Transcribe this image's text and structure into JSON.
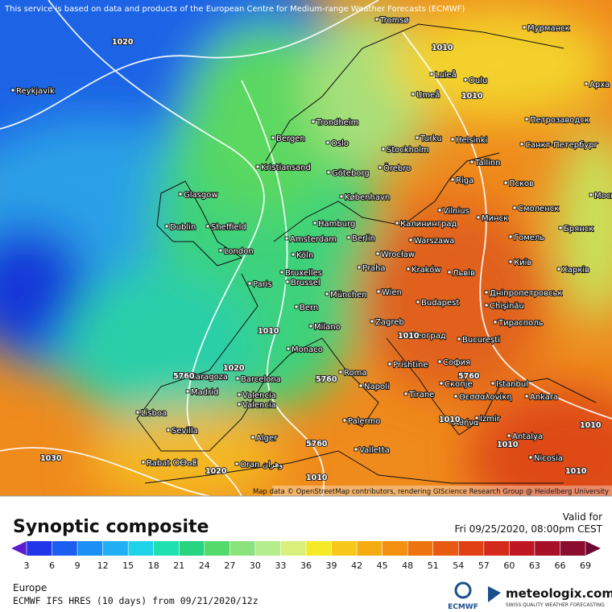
{
  "header": {
    "attribution": "This service is based on data and products of the European Centre for Medium-range Weather Forecasts (ECMWF)"
  },
  "map": {
    "cities": [
      "Reykjavík",
      "Tromsø",
      "Мурманск",
      "Luleå",
      "Oulu",
      "Арха",
      "Umeå",
      "Trondheim",
      "Петрозаводск",
      "Bergen",
      "Oslo",
      "Turku",
      "Helsinki",
      "Санкт-Петербург",
      "Stockholm",
      "Örebro",
      "Tallinn",
      "Kristiansand",
      "Göteborg",
      "Glasgow",
      "Riga",
      "Псков",
      "København",
      "Москва",
      "Dublin",
      "Sheffield",
      "Vilnius",
      "Смоленск",
      "Hamburg",
      "Калининград",
      "Минск",
      "Брянск",
      "Amsterdam",
      "Berlin",
      "Гомель",
      "Warszawa",
      "London",
      "Köln",
      "Wrocław",
      "Київ",
      "Kraków",
      "Bruxelles",
      "Praha",
      "Львів",
      "Харків",
      "Brussel",
      "Paris",
      "München",
      "Wien",
      "Дніпропетровськ",
      "Bern",
      "Budapest",
      "Chișinău",
      "Milano",
      "Zagreb",
      "Београд",
      "Тирасполь",
      "Monaco",
      "București",
      "Roma",
      "Prishtine",
      "София",
      "Zaragoza",
      "Barcelona",
      "Istanbul",
      "Madrid",
      "Napoli",
      "Скопје",
      "Tirane",
      "Θεσσαλονίκη",
      "Ankara",
      "Valencia",
      "Valencia",
      "Lisboa",
      "Palermo",
      "Αθήνα",
      "Izmir",
      "Sevilla",
      "Alger",
      "Antalya",
      "Valletta",
      "Nicosia",
      "Rabat ⵔⴱⴰⵟ",
      "Oran وهران"
    ],
    "isobar_labels": [
      "1020",
      "1010",
      "1010",
      "1010",
      "5760",
      "1020",
      "5760",
      "1010",
      "5760",
      "1010",
      "1010",
      "1010",
      "5760",
      "1030",
      "1020",
      "1010",
      "1010"
    ],
    "credit": "Map data © OpenStreetMap contributors, rendering GIScience Research Group @ Heidelberg University"
  },
  "legend": {
    "title": "Synoptic composite",
    "valid_label": "Valid for",
    "valid_time": "Fri 09/25/2020, 08:00pm CEST",
    "ticks": [
      3,
      6,
      9,
      12,
      15,
      18,
      21,
      24,
      27,
      30,
      33,
      36,
      39,
      42,
      45,
      48,
      51,
      54,
      57,
      60,
      63,
      66,
      69
    ],
    "colors": [
      "#2036e8",
      "#1a5ff0",
      "#1a8ff5",
      "#22b0f5",
      "#1ed2e8",
      "#1ee0b0",
      "#27d480",
      "#52db6a",
      "#8ae27c",
      "#b5ec8c",
      "#d9f07a",
      "#f5ea28",
      "#f7c81a",
      "#f5ac10",
      "#f39010",
      "#ee7410",
      "#e85a12",
      "#e04014",
      "#d42a1a",
      "#c01822",
      "#a8102a",
      "#8c0c30"
    ],
    "under_color": "#5a1ecc",
    "over_color": "#6e0a30"
  },
  "footer": {
    "region": "Europe",
    "model": "ECMWF IFS HRES (10 days) from 09/21/2020/12z",
    "ecmwf_logo": "ECMWF",
    "brand": "meteologix.com",
    "tagline": "SWISS QUALITY WEATHER FORECASTING"
  }
}
